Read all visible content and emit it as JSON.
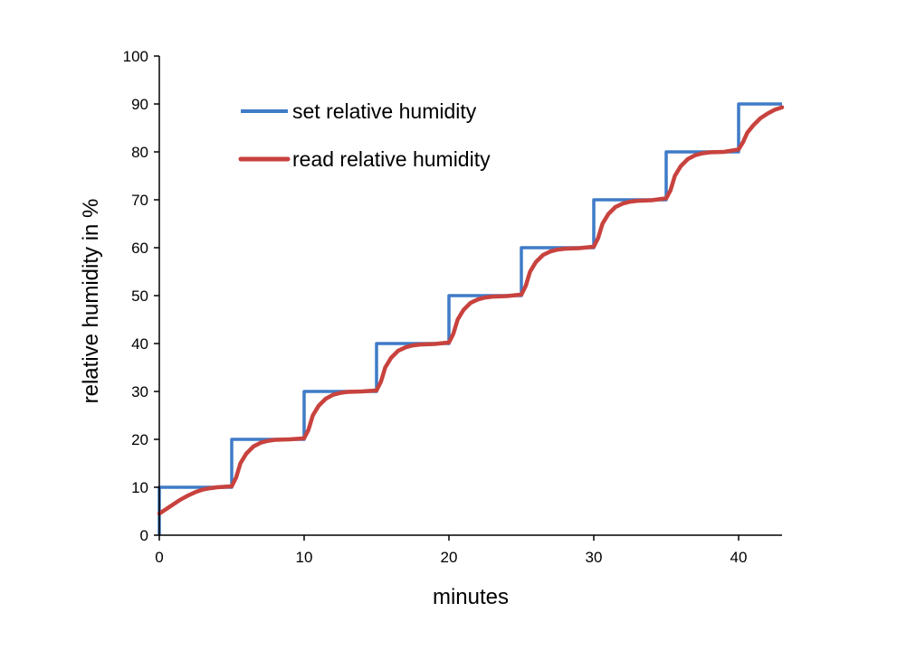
{
  "chart_data": {
    "type": "line",
    "title": "",
    "xlabel": "minutes",
    "ylabel": "relative humidity in  %",
    "xlim": [
      0,
      43
    ],
    "ylim": [
      0,
      100
    ],
    "x_ticks": [
      0,
      10,
      20,
      30,
      40
    ],
    "y_ticks": [
      0,
      10,
      20,
      30,
      40,
      50,
      60,
      70,
      80,
      90,
      100
    ],
    "grid": false,
    "legend_position": "top-left",
    "series": [
      {
        "name": "set relative humidity",
        "color": "#3f7bc7",
        "points": [
          [
            0,
            0
          ],
          [
            0,
            10
          ],
          [
            5,
            10
          ],
          [
            5,
            20
          ],
          [
            10,
            20
          ],
          [
            10,
            30
          ],
          [
            15,
            30
          ],
          [
            15,
            40
          ],
          [
            20,
            40
          ],
          [
            20,
            50
          ],
          [
            25,
            50
          ],
          [
            25,
            60
          ],
          [
            30,
            60
          ],
          [
            30,
            70
          ],
          [
            35,
            70
          ],
          [
            35,
            80
          ],
          [
            40,
            80
          ],
          [
            40,
            90
          ],
          [
            43,
            90
          ]
        ]
      },
      {
        "name": "read relative humidity",
        "color": "#c8423e",
        "points": [
          [
            0,
            4.5
          ],
          [
            0.5,
            5.5
          ],
          [
            1,
            6.5
          ],
          [
            1.5,
            7.5
          ],
          [
            2,
            8.3
          ],
          [
            2.5,
            9
          ],
          [
            3,
            9.5
          ],
          [
            3.5,
            9.8
          ],
          [
            4,
            10
          ],
          [
            5,
            10.2
          ],
          [
            5.3,
            12
          ],
          [
            5.6,
            15
          ],
          [
            6,
            17
          ],
          [
            6.5,
            18.5
          ],
          [
            7,
            19.3
          ],
          [
            7.5,
            19.7
          ],
          [
            8,
            19.9
          ],
          [
            9,
            20
          ],
          [
            10,
            20.2
          ],
          [
            10.3,
            22
          ],
          [
            10.6,
            25
          ],
          [
            11,
            27
          ],
          [
            11.5,
            28.5
          ],
          [
            12,
            29.3
          ],
          [
            12.5,
            29.7
          ],
          [
            13,
            29.9
          ],
          [
            14,
            30
          ],
          [
            15,
            30.2
          ],
          [
            15.3,
            32
          ],
          [
            15.6,
            35
          ],
          [
            16,
            37
          ],
          [
            16.5,
            38.5
          ],
          [
            17,
            39.2
          ],
          [
            17.5,
            39.6
          ],
          [
            18,
            39.8
          ],
          [
            19,
            39.9
          ],
          [
            20,
            40.2
          ],
          [
            20.3,
            42
          ],
          [
            20.6,
            45
          ],
          [
            21,
            47
          ],
          [
            21.5,
            48.5
          ],
          [
            22,
            49.2
          ],
          [
            22.5,
            49.6
          ],
          [
            23,
            49.8
          ],
          [
            24,
            49.9
          ],
          [
            25,
            50.2
          ],
          [
            25.3,
            52
          ],
          [
            25.6,
            55
          ],
          [
            26,
            57
          ],
          [
            26.5,
            58.5
          ],
          [
            27,
            59.2
          ],
          [
            27.5,
            59.6
          ],
          [
            28,
            59.8
          ],
          [
            29,
            59.9
          ],
          [
            30,
            60.2
          ],
          [
            30.3,
            62
          ],
          [
            30.6,
            65
          ],
          [
            31,
            67
          ],
          [
            31.5,
            68.5
          ],
          [
            32,
            69.2
          ],
          [
            32.5,
            69.6
          ],
          [
            33,
            69.8
          ],
          [
            34,
            69.9
          ],
          [
            35,
            70.3
          ],
          [
            35.3,
            72
          ],
          [
            35.6,
            75
          ],
          [
            36,
            77
          ],
          [
            36.5,
            78.5
          ],
          [
            37,
            79.3
          ],
          [
            37.5,
            79.7
          ],
          [
            38,
            79.9
          ],
          [
            39,
            80
          ],
          [
            40,
            80.5
          ],
          [
            40.3,
            82
          ],
          [
            40.6,
            84
          ],
          [
            41,
            85.5
          ],
          [
            41.5,
            87
          ],
          [
            42,
            88
          ],
          [
            42.5,
            88.8
          ],
          [
            43,
            89.3
          ]
        ]
      }
    ]
  }
}
